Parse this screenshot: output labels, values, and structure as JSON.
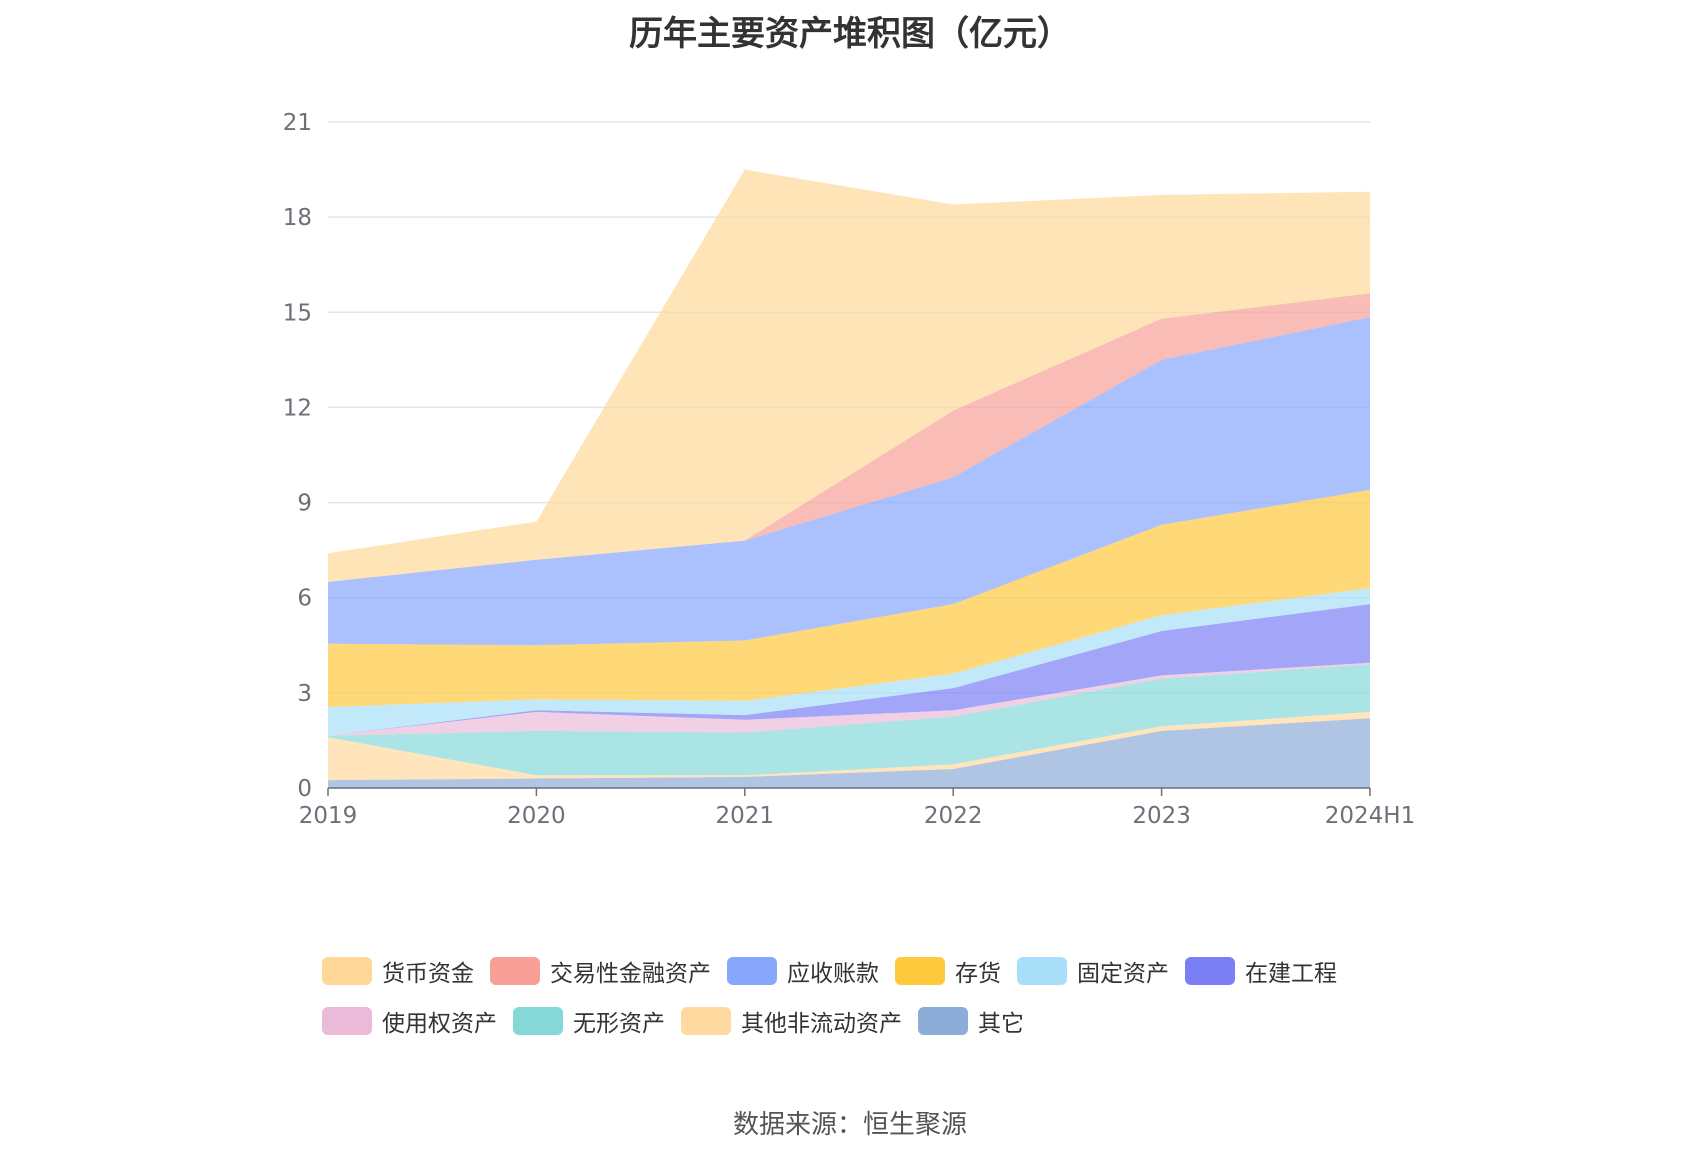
{
  "title": "历年主要资产堆积图（亿元）",
  "source": "数据来源：恒生聚源",
  "chart_data": {
    "type": "area",
    "stacked": true,
    "categories": [
      "2019",
      "2020",
      "2021",
      "2022",
      "2023",
      "2024H1"
    ],
    "ylim": [
      0,
      21
    ],
    "yticks": [
      "0",
      "3",
      "6",
      "9",
      "12",
      "15",
      "18",
      "21"
    ],
    "grid": true,
    "legend_position": "bottom",
    "series": [
      {
        "name": "其它",
        "color": "#8eacd8",
        "values": [
          0.25,
          0.3,
          0.35,
          0.6,
          1.8,
          2.2
        ]
      },
      {
        "name": "其他非流动资产",
        "color": "#ffd9a0",
        "values": [
          1.35,
          0.1,
          0.05,
          0.15,
          0.15,
          0.2
        ]
      },
      {
        "name": "无形资产",
        "color": "#86d8d8",
        "values": [
          0.05,
          1.4,
          1.35,
          1.5,
          1.5,
          1.5
        ]
      },
      {
        "name": "使用权资产",
        "color": "#ebbad8",
        "values": [
          0.0,
          0.6,
          0.4,
          0.2,
          0.1,
          0.05
        ]
      },
      {
        "name": "在建工程",
        "color": "#7b7ff5",
        "values": [
          0.0,
          0.05,
          0.15,
          0.7,
          1.4,
          1.85
        ]
      },
      {
        "name": "固定资产",
        "color": "#a8dff8",
        "values": [
          0.9,
          0.35,
          0.45,
          0.45,
          0.5,
          0.5
        ]
      },
      {
        "name": "存货",
        "color": "#ffc93e",
        "values": [
          2.0,
          1.7,
          1.9,
          2.2,
          2.85,
          3.1
        ]
      },
      {
        "name": "应收账款",
        "color": "#88a7fc",
        "values": [
          1.95,
          2.7,
          3.15,
          4.0,
          5.2,
          5.45
        ]
      },
      {
        "name": "交易性金融资产",
        "color": "#f8a097",
        "values": [
          0.0,
          0.0,
          0.0,
          2.1,
          1.3,
          0.75
        ]
      },
      {
        "name": "货币资金",
        "color": "#ffd899",
        "values": [
          0.9,
          1.2,
          11.7,
          6.5,
          3.9,
          3.2
        ]
      }
    ],
    "legend_order": [
      "货币资金",
      "交易性金融资产",
      "应收账款",
      "存货",
      "固定资产",
      "在建工程",
      "使用权资产",
      "无形资产",
      "其他非流动资产",
      "其它"
    ]
  }
}
